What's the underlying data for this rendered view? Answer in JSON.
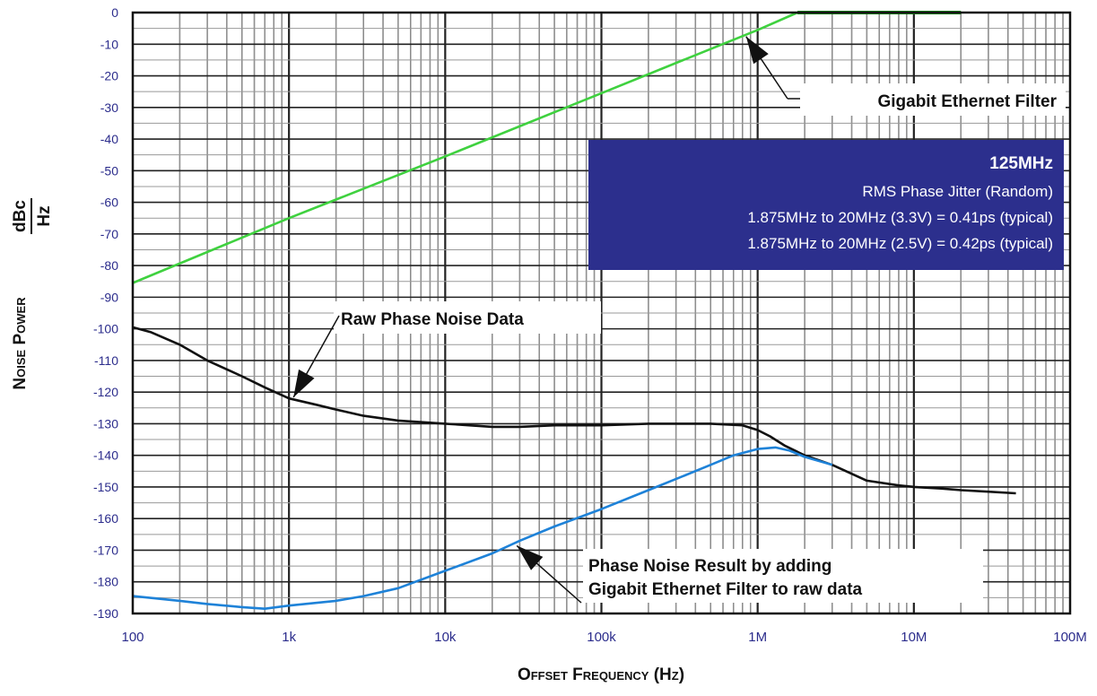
{
  "chart_data": {
    "type": "line",
    "xscale": "log",
    "xlim": [
      100,
      100000000
    ],
    "ylim": [
      -190,
      0
    ],
    "grid": true,
    "xlabel": "Offset Frequency (Hz)",
    "ylabel_prefix": "Noise Power",
    "ylabel_unit_num": "dBc",
    "ylabel_unit_den": "Hz",
    "x_ticks": [
      100,
      1000,
      10000,
      100000,
      1000000,
      10000000,
      100000000
    ],
    "x_tick_labels": [
      "100",
      "1k",
      "10k",
      "100k",
      "1M",
      "10M",
      "100M"
    ],
    "y_ticks": [
      0,
      -10,
      -20,
      -30,
      -40,
      -50,
      -60,
      -70,
      -80,
      -90,
      -100,
      -110,
      -120,
      -130,
      -140,
      -150,
      -160,
      -170,
      -180,
      -190
    ],
    "y_tick_labels": [
      "0",
      "-10",
      "-20",
      "-30",
      "-40",
      "-50",
      "-60",
      "-70",
      "-80",
      "-90",
      "-100",
      "-110",
      "-120",
      "-130",
      "-140",
      "-150",
      "-160",
      "-170",
      "-180",
      "-190"
    ],
    "series": [
      {
        "id": "filter",
        "color": "#3fd13f",
        "x": [
          100,
          1000,
          10000,
          100000,
          1000000,
          1800000
        ],
        "y": [
          -85.5,
          -65,
          -45.5,
          -25.5,
          -5.5,
          0
        ]
      },
      {
        "id": "filter-flat",
        "color": "#138a13",
        "x": [
          1800000,
          20000000
        ],
        "y": [
          0,
          0
        ]
      },
      {
        "id": "raw",
        "color": "#111111",
        "x": [
          100,
          130,
          200,
          300,
          500,
          700,
          1000,
          1500,
          2000,
          3000,
          5000,
          10000,
          20000,
          30000,
          50000,
          100000,
          200000,
          500000,
          800000,
          1000000,
          1200000,
          1500000,
          2000000,
          3000000,
          5000000,
          8000000,
          10000000,
          15000000,
          20000000,
          30000000,
          45000000
        ],
        "y": [
          -99.5,
          -101,
          -105,
          -110,
          -115,
          -118.5,
          -122,
          -124,
          -125.5,
          -127.5,
          -129,
          -130,
          -131,
          -131,
          -130.5,
          -130.5,
          -130,
          -130,
          -130.5,
          -132,
          -134,
          -137,
          -140,
          -143,
          -148,
          -149.5,
          -150,
          -150.5,
          -151,
          -151.5,
          -152
        ]
      },
      {
        "id": "result",
        "color": "#1e82d8",
        "x": [
          100,
          200,
          300,
          500,
          700,
          1000,
          2000,
          3000,
          5000,
          10000,
          20000,
          30000,
          50000,
          100000,
          200000,
          300000,
          500000,
          700000,
          1000000,
          1300000,
          1600000,
          2000000,
          3000000
        ],
        "y": [
          -184.5,
          -186,
          -187,
          -188,
          -188.5,
          -187.5,
          -186,
          -184.5,
          -182,
          -176.5,
          -171,
          -167,
          -162.5,
          -157,
          -151,
          -147.5,
          -143,
          -140,
          -138,
          -137.5,
          -138.5,
          -140.5,
          -143
        ]
      }
    ],
    "annotations": [
      {
        "id": "filter-label",
        "text": "Gigabit Ethernet Filter",
        "point": [
          800000,
          -7
        ]
      },
      {
        "id": "raw-label",
        "text": "Raw Phase Noise Data",
        "point": [
          1000,
          -122.5
        ]
      },
      {
        "id": "result-label",
        "lines": [
          "Phase Noise Result by adding",
          "Gigabit Ethernet Filter to raw data"
        ],
        "point": [
          28000,
          -168
        ]
      }
    ],
    "info_box": {
      "title": "125MHz",
      "lines": [
        "RMS Phase Jitter (Random)",
        "1.875MHz to 20MHz (3.3V) = 0.41ps (typical)",
        "1.875MHz to 20MHz (2.5V) = 0.42ps (typical)"
      ],
      "background": "#2c2f8d"
    }
  }
}
